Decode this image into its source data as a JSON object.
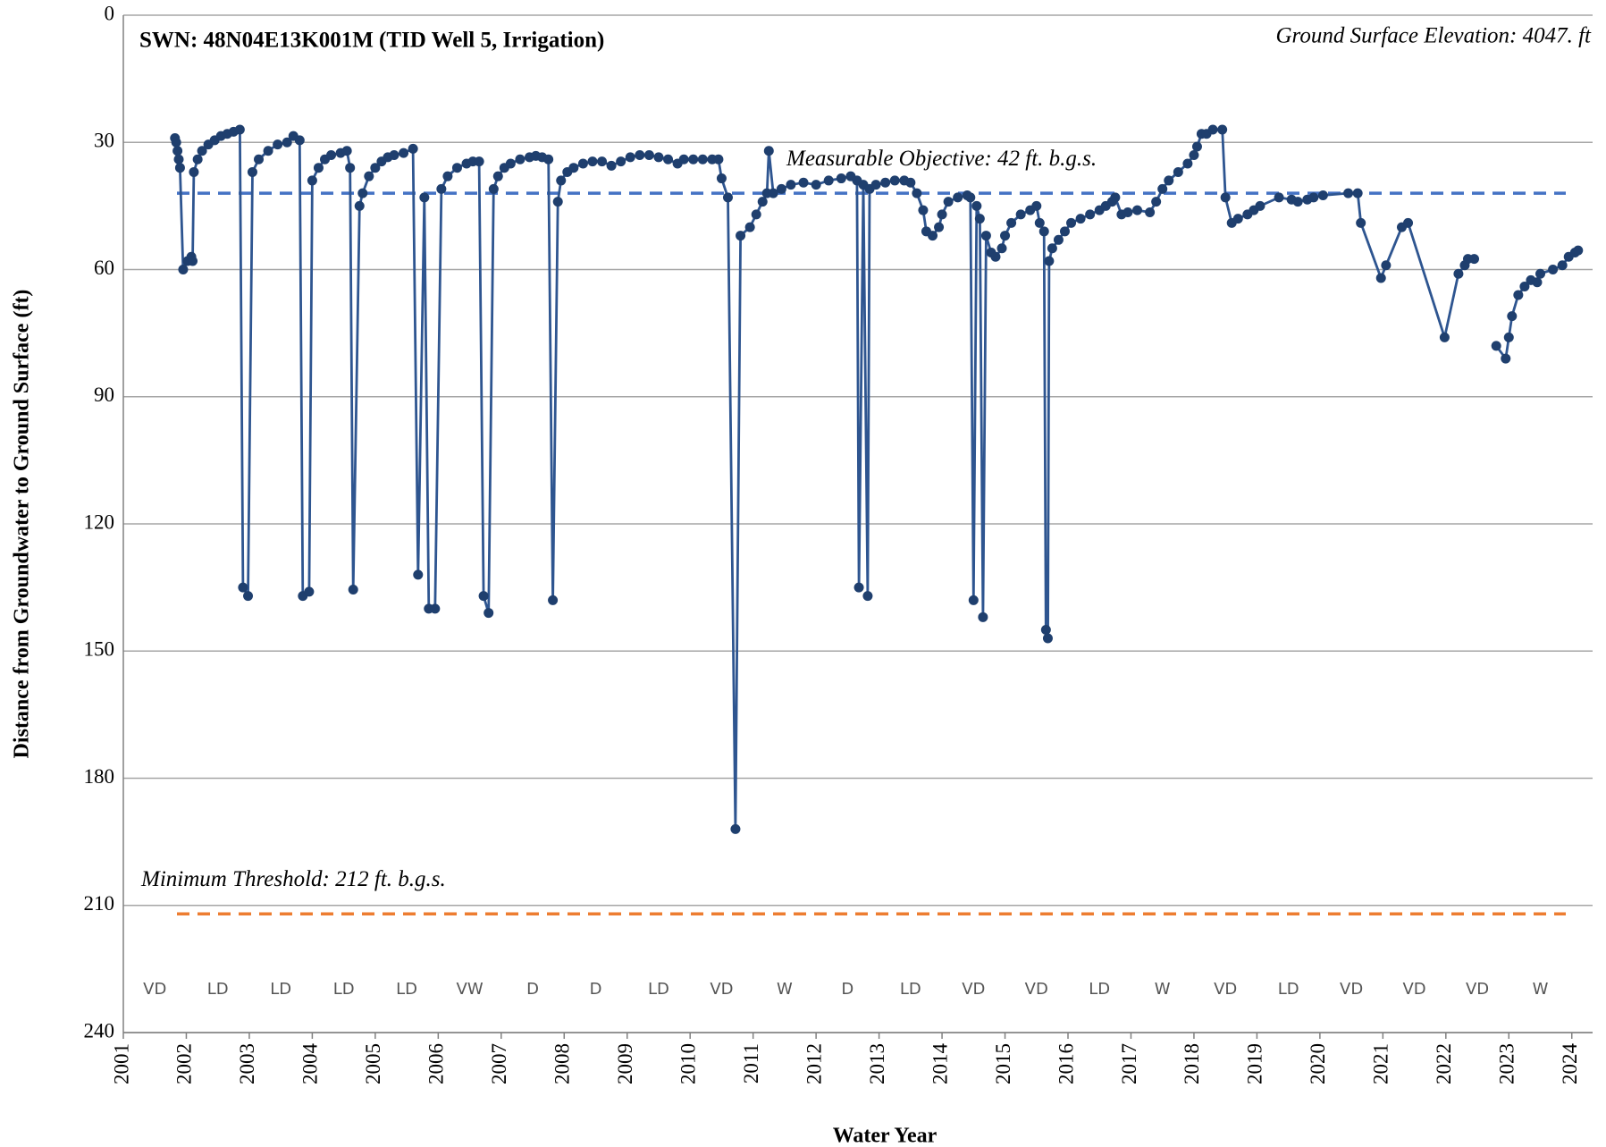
{
  "chart_data": {
    "type": "line",
    "title": "SWN: 48N04E13K001M (TID Well 5, Irrigation)",
    "subtitle": "Ground Surface Elevation: 4047. ft",
    "xlabel": "Water Year",
    "ylabel": "Distance from Groundwater to Ground Surface (ft)",
    "color": "#2e5590",
    "marker_color": "#1f3f6e",
    "x": [
      2001.82,
      2001.84,
      2001.86,
      2001.88,
      2001.9,
      2001.95,
      2002.02,
      2002.08,
      2002.1,
      2002.12,
      2002.18,
      2002.25,
      2002.35,
      2002.45,
      2002.55,
      2002.65,
      2002.75,
      2002.85,
      2002.9,
      2002.98,
      2003.05,
      2003.15,
      2003.3,
      2003.45,
      2003.6,
      2003.7,
      2003.8,
      2003.85,
      2003.95,
      2004.0,
      2004.1,
      2004.2,
      2004.3,
      2004.45,
      2004.55,
      2004.6,
      2004.65,
      2004.75,
      2004.8,
      2004.9,
      2005.0,
      2005.1,
      2005.2,
      2005.3,
      2005.45,
      2005.6,
      2005.68,
      2005.78,
      2005.85,
      2005.95,
      2006.05,
      2006.15,
      2006.3,
      2006.45,
      2006.55,
      2006.65,
      2006.72,
      2006.8,
      2006.88,
      2006.95,
      2007.05,
      2007.15,
      2007.3,
      2007.45,
      2007.55,
      2007.65,
      2007.75,
      2007.82,
      2007.9,
      2007.95,
      2008.05,
      2008.15,
      2008.3,
      2008.45,
      2008.6,
      2008.75,
      2008.9,
      2009.05,
      2009.2,
      2009.35,
      2009.5,
      2009.65,
      2009.8,
      2009.9,
      2010.05,
      2010.2,
      2010.35,
      2010.45,
      2010.5,
      2010.6,
      2010.72,
      2010.8,
      2010.95,
      2011.05,
      2011.15,
      2011.22,
      2011.25,
      2011.32,
      2011.45,
      2011.6,
      2011.8,
      2012.0,
      2012.2,
      2012.4,
      2012.55,
      2012.65,
      2012.68,
      2012.75,
      2012.82,
      2012.85,
      2012.95,
      2013.1,
      2013.25,
      2013.4,
      2013.5,
      2013.6,
      2013.7,
      2013.75,
      2013.85,
      2013.95,
      2014.0,
      2014.1,
      2014.25,
      2014.4,
      2014.45,
      2014.5,
      2014.55,
      2014.6,
      2014.65,
      2014.7,
      2014.78,
      2014.85,
      2014.95,
      2015.0,
      2015.1,
      2015.25,
      2015.4,
      2015.5,
      2015.55,
      2015.62,
      2015.65,
      2015.68,
      2015.7,
      2015.75,
      2015.85,
      2015.95,
      2016.05,
      2016.2,
      2016.35,
      2016.5,
      2016.6,
      2016.7,
      2016.75,
      2016.85,
      2016.95,
      2017.1,
      2017.3,
      2017.4,
      2017.5,
      2017.6,
      2017.75,
      2017.9,
      2018.0,
      2018.05,
      2018.12,
      2018.2,
      2018.3,
      2018.45,
      2018.5,
      2018.6,
      2018.7,
      2018.85,
      2018.95,
      2019.05,
      2019.35,
      2019.55,
      2019.65,
      2019.8,
      2019.9,
      2020.05,
      2020.45,
      2020.6,
      2020.65,
      2020.97,
      2021.05,
      2021.3,
      2021.4,
      2021.98,
      2022.2,
      2022.3,
      2022.35,
      2022.45,
      null,
      2022.8,
      2022.95,
      2023.0,
      2023.05,
      2023.15,
      2023.25,
      2023.35,
      2023.45,
      2023.5,
      2023.7,
      2023.85,
      2023.95,
      2024.05,
      2024.1
    ],
    "values": [
      29,
      30,
      32,
      34,
      36,
      60,
      58,
      57,
      58,
      37,
      34,
      32,
      30.5,
      29.5,
      28.5,
      28,
      27.5,
      27,
      135,
      137,
      37,
      34,
      32,
      30.5,
      30,
      28.5,
      29.5,
      137,
      136,
      39,
      36,
      34,
      33,
      32.5,
      32,
      36,
      135.5,
      45,
      42,
      38,
      36,
      34.5,
      33.5,
      33,
      32.5,
      31.5,
      132,
      43,
      140,
      140,
      41,
      38,
      36,
      35,
      34.5,
      34.5,
      137,
      141,
      41,
      38,
      36,
      35,
      34,
      33.5,
      33.2,
      33.5,
      34,
      138,
      44,
      39,
      37,
      36,
      35,
      34.5,
      34.5,
      35.5,
      34.5,
      33.5,
      33,
      33,
      33.5,
      34,
      35,
      34,
      34,
      34,
      34,
      34,
      38.5,
      43,
      192,
      52,
      50,
      47,
      44,
      42,
      32,
      42,
      41,
      40,
      39.5,
      40,
      39,
      38.5,
      38,
      39,
      135,
      40,
      137,
      41,
      40,
      39.5,
      39,
      39,
      39.5,
      42,
      46,
      51,
      52,
      50,
      47,
      44,
      43,
      42.5,
      43,
      138,
      45,
      48,
      142,
      52,
      56,
      57,
      55,
      52,
      49,
      47,
      46,
      45,
      49,
      51,
      145,
      147,
      58,
      55,
      53,
      51,
      49,
      48,
      47,
      46,
      45,
      44,
      43,
      47,
      46.5,
      46,
      46.5,
      44,
      41,
      39,
      37,
      35,
      33,
      31,
      28,
      28,
      27,
      27,
      43,
      49,
      48,
      47,
      46,
      45,
      43,
      43.5,
      44,
      43.5,
      43,
      42.5,
      42,
      42,
      49,
      62,
      59,
      50,
      49,
      76,
      61,
      59,
      57.5,
      57.5,
      null,
      78,
      81,
      76,
      71,
      66,
      64,
      62.5,
      63,
      61,
      60,
      59,
      57,
      56,
      55.5
    ],
    "reference_lines": [
      {
        "label": "Measurable Objective: 42 ft. b.g.s.",
        "value": 42,
        "color": "#4472c4"
      },
      {
        "label": "Minimum Threshold: 212 ft. b.g.s.",
        "value": 212,
        "color": "#ed7d31"
      }
    ],
    "year_types": [
      "VD",
      "LD",
      "LD",
      "LD",
      "LD",
      "VW",
      "D",
      "D",
      "LD",
      "VD",
      "W",
      "D",
      "LD",
      "VD",
      "VD",
      "LD",
      "W",
      "VD",
      "LD",
      "VD",
      "VD",
      "VD",
      "W"
    ],
    "xlim": [
      2001,
      2024.33
    ],
    "xticks": [
      2001,
      2002,
      2003,
      2004,
      2005,
      2006,
      2007,
      2008,
      2009,
      2010,
      2011,
      2012,
      2013,
      2014,
      2015,
      2016,
      2017,
      2018,
      2019,
      2020,
      2021,
      2022,
      2023,
      2024
    ],
    "ylim": [
      0,
      240
    ],
    "y_inverted": true,
    "yticks": [
      0,
      30,
      60,
      90,
      120,
      150,
      180,
      210,
      240
    ],
    "grid": true
  }
}
